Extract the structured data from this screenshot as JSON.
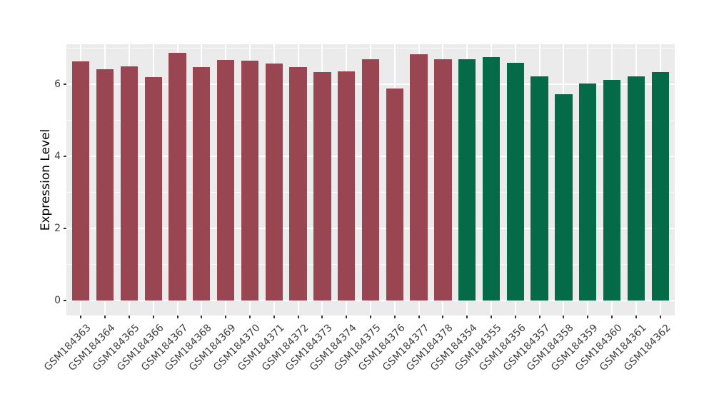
{
  "chart_data": {
    "type": "bar",
    "title": "",
    "xlabel": "",
    "ylabel": "Expression Level",
    "ylim": [
      -0.415,
      7.1
    ],
    "yticks": [
      0,
      2,
      4,
      6
    ],
    "yminor_ticks": [
      1,
      3,
      5,
      7
    ],
    "grid": "on",
    "legend": "none",
    "categories": [
      "GSM184363",
      "GSM184364",
      "GSM184365",
      "GSM184366",
      "GSM184367",
      "GSM184368",
      "GSM184369",
      "GSM184370",
      "GSM184371",
      "GSM184372",
      "GSM184373",
      "GSM184374",
      "GSM184375",
      "GSM184376",
      "GSM184377",
      "GSM184378",
      "GSM184354",
      "GSM184355",
      "GSM184356",
      "GSM184357",
      "GSM184358",
      "GSM184359",
      "GSM184360",
      "GSM184361",
      "GSM184362"
    ],
    "values": [
      6.62,
      6.4,
      6.49,
      6.2,
      6.86,
      6.47,
      6.66,
      6.64,
      6.56,
      6.46,
      6.32,
      6.34,
      6.69,
      5.87,
      6.83,
      6.68,
      6.69,
      6.75,
      6.58,
      6.21,
      5.72,
      6.02,
      6.12,
      6.21,
      6.32
    ],
    "bar_groups": [
      "group1",
      "group1",
      "group1",
      "group1",
      "group1",
      "group1",
      "group1",
      "group1",
      "group1",
      "group1",
      "group1",
      "group1",
      "group1",
      "group1",
      "group1",
      "group1",
      "group2",
      "group2",
      "group2",
      "group2",
      "group2",
      "group2",
      "group2",
      "group2",
      "group2"
    ],
    "group_colors": {
      "group1": "#9A4552",
      "group2": "#056A48"
    }
  },
  "style": {
    "panel_bg": "#EBEBEB",
    "grid_color": "#FFFFFF",
    "axis_text_color": "#404040",
    "tick_mark_color": "#333333"
  }
}
